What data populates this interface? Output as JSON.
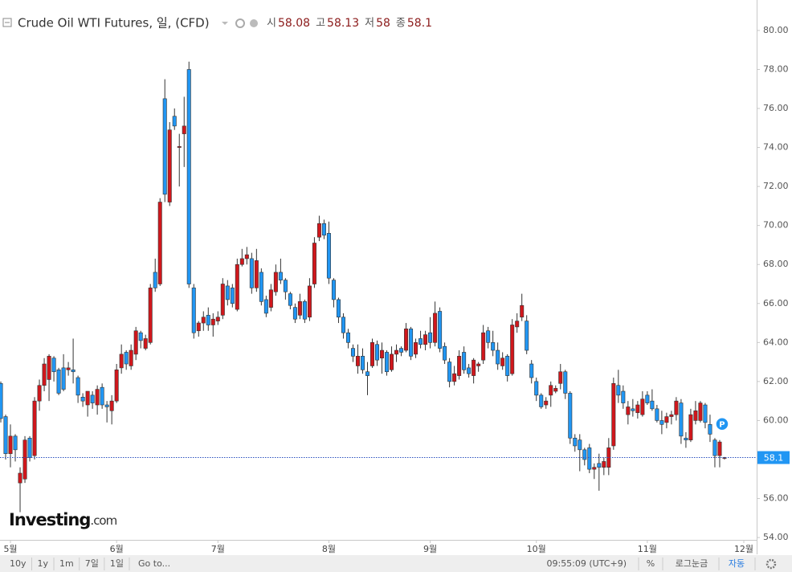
{
  "chart_data": {
    "type": "candlestick",
    "title": "Crude Oil WTI Futures, 일, (CFD)",
    "ohlc_labels": [
      "시",
      "고",
      "저",
      "종"
    ],
    "categories": [
      null,
      null,
      "5월",
      null,
      null,
      null,
      null,
      null,
      null,
      null,
      null,
      null,
      null,
      null,
      null,
      null,
      null,
      null,
      null,
      null,
      null,
      null,
      null,
      null,
      "6월",
      null,
      null,
      null,
      null,
      null,
      null,
      null,
      null,
      null,
      null,
      null,
      null,
      null,
      null,
      null,
      null,
      null,
      null,
      null,
      null,
      "7월",
      null,
      null,
      null,
      null,
      null,
      null,
      null,
      null,
      null,
      null,
      null,
      null,
      null,
      null,
      null,
      null,
      null,
      null,
      null,
      null,
      null,
      null,
      "8월",
      null,
      null,
      null,
      null,
      null,
      null,
      null,
      null,
      null,
      null,
      null,
      null,
      null,
      null,
      null,
      null,
      null,
      null,
      null,
      null,
      "9월",
      null,
      null,
      null,
      null,
      null,
      null,
      null,
      null,
      null,
      null,
      null,
      null,
      null,
      null,
      null,
      null,
      null,
      null,
      null,
      null,
      null,
      "10월",
      null,
      null,
      null,
      null,
      null,
      null,
      null,
      null,
      null,
      null,
      null,
      null,
      null,
      null,
      null,
      null,
      null,
      null,
      null,
      null,
      null,
      null,
      "11월",
      null,
      null,
      null,
      null,
      null,
      null,
      null,
      null,
      null,
      null,
      null,
      null,
      null,
      null,
      null,
      null,
      null,
      null,
      null,
      "12월"
    ],
    "ohlc": [
      [
        61.9,
        62.0,
        59.9,
        60.1
      ],
      [
        60.2,
        60.3,
        58.0,
        58.3
      ],
      [
        58.3,
        59.8,
        57.6,
        59.2
      ],
      [
        59.2,
        59.3,
        57.9,
        58.5
      ],
      [
        56.8,
        57.6,
        55.3,
        57.3
      ],
      [
        57.0,
        59.2,
        56.8,
        59.0
      ],
      [
        59.1,
        59.2,
        57.9,
        58.1
      ],
      [
        58.2,
        61.2,
        58.0,
        61.0
      ],
      [
        61.0,
        62.1,
        60.5,
        61.8
      ],
      [
        61.8,
        63.2,
        61.5,
        62.9
      ],
      [
        62.1,
        63.4,
        61.0,
        63.3
      ],
      [
        63.2,
        63.3,
        62.0,
        62.5
      ],
      [
        62.6,
        62.7,
        61.3,
        61.4
      ],
      [
        62.7,
        63.4,
        61.5,
        61.6
      ],
      [
        62.6,
        63.0,
        62.3,
        62.7
      ],
      [
        62.6,
        64.2,
        61.9,
        62.5
      ],
      [
        62.2,
        62.3,
        60.9,
        61.3
      ],
      [
        61.2,
        61.4,
        60.7,
        61.0
      ],
      [
        60.8,
        61.5,
        60.2,
        61.5
      ],
      [
        61.3,
        61.5,
        60.6,
        60.9
      ],
      [
        60.8,
        61.8,
        60.3,
        61.6
      ],
      [
        61.7,
        61.9,
        60.6,
        60.8
      ],
      [
        60.8,
        61.0,
        59.9,
        60.7
      ],
      [
        60.5,
        61.3,
        59.8,
        61.0
      ],
      [
        61.0,
        62.9,
        60.9,
        62.6
      ],
      [
        62.7,
        63.9,
        62.4,
        63.4
      ],
      [
        63.5,
        63.6,
        62.6,
        62.9
      ],
      [
        62.8,
        63.9,
        62.6,
        63.6
      ],
      [
        63.4,
        64.8,
        63.1,
        64.6
      ],
      [
        64.5,
        64.6,
        63.7,
        64.1
      ],
      [
        63.7,
        64.4,
        63.6,
        64.2
      ],
      [
        64.0,
        67.0,
        63.9,
        66.8
      ],
      [
        67.6,
        68.3,
        66.6,
        66.8
      ],
      [
        67.0,
        71.4,
        66.9,
        71.2
      ],
      [
        76.5,
        77.5,
        71.2,
        71.6
      ],
      [
        71.2,
        75.3,
        71.0,
        74.9
      ],
      [
        75.6,
        76.0,
        74.9,
        75.1
      ],
      [
        74.0,
        74.7,
        72.0,
        74.05
      ],
      [
        74.7,
        76.6,
        73.0,
        75.1
      ],
      [
        78.0,
        78.4,
        66.8,
        67.0
      ],
      [
        66.8,
        67.0,
        64.2,
        64.5
      ],
      [
        64.6,
        65.1,
        64.3,
        65.0
      ],
      [
        65.0,
        65.6,
        64.6,
        65.3
      ],
      [
        65.4,
        65.8,
        64.6,
        64.9
      ],
      [
        64.9,
        65.5,
        64.3,
        65.2
      ],
      [
        65.1,
        65.6,
        64.9,
        65.3
      ],
      [
        65.4,
        67.3,
        65.2,
        67.0
      ],
      [
        66.9,
        67.2,
        65.9,
        66.2
      ],
      [
        66.8,
        67.0,
        65.8,
        66.0
      ],
      [
        65.7,
        68.3,
        65.6,
        68.0
      ],
      [
        68.0,
        68.8,
        67.9,
        68.3
      ],
      [
        68.3,
        68.9,
        68.0,
        68.5
      ],
      [
        68.3,
        68.6,
        66.5,
        66.8
      ],
      [
        66.8,
        68.8,
        66.6,
        68.2
      ],
      [
        67.6,
        67.8,
        65.9,
        66.1
      ],
      [
        66.2,
        66.4,
        65.3,
        65.5
      ],
      [
        65.8,
        67.0,
        65.6,
        66.7
      ],
      [
        66.6,
        68.0,
        66.4,
        67.6
      ],
      [
        67.6,
        68.3,
        67.0,
        67.2
      ],
      [
        67.2,
        67.3,
        66.2,
        66.6
      ],
      [
        66.5,
        66.6,
        65.7,
        65.9
      ],
      [
        65.8,
        66.0,
        65.0,
        65.2
      ],
      [
        65.4,
        66.5,
        65.2,
        66.1
      ],
      [
        66.1,
        66.2,
        65.0,
        65.2
      ],
      [
        65.3,
        67.3,
        65.1,
        66.9
      ],
      [
        67.0,
        69.4,
        66.8,
        69.1
      ],
      [
        69.4,
        70.5,
        69.2,
        70.1
      ],
      [
        70.1,
        70.3,
        69.3,
        69.5
      ],
      [
        69.6,
        70.2,
        67.0,
        67.3
      ],
      [
        67.2,
        67.3,
        65.8,
        66.2
      ],
      [
        66.2,
        66.3,
        65.0,
        65.3
      ],
      [
        65.3,
        65.5,
        64.2,
        64.5
      ],
      [
        64.5,
        64.7,
        63.7,
        64.0
      ],
      [
        63.7,
        63.9,
        63.0,
        63.3
      ],
      [
        62.8,
        63.9,
        62.4,
        63.3
      ],
      [
        63.3,
        63.7,
        62.4,
        62.6
      ],
      [
        62.5,
        63.0,
        61.3,
        62.3
      ],
      [
        62.8,
        64.2,
        62.7,
        64.0
      ],
      [
        63.9,
        64.1,
        62.8,
        63.1
      ],
      [
        63.2,
        64.0,
        62.4,
        63.6
      ],
      [
        63.5,
        63.6,
        62.3,
        62.5
      ],
      [
        62.6,
        63.8,
        62.5,
        63.4
      ],
      [
        63.4,
        63.9,
        63.0,
        63.6
      ],
      [
        63.7,
        63.8,
        63.3,
        63.5
      ],
      [
        63.6,
        65.0,
        63.5,
        64.7
      ],
      [
        64.7,
        64.8,
        63.1,
        63.3
      ],
      [
        63.4,
        64.2,
        63.2,
        64.0
      ],
      [
        64.2,
        64.6,
        63.7,
        63.9
      ],
      [
        63.9,
        64.6,
        63.6,
        64.4
      ],
      [
        64.5,
        65.3,
        63.7,
        64.0
      ],
      [
        64.0,
        66.1,
        63.8,
        65.5
      ],
      [
        65.6,
        65.8,
        63.5,
        63.7
      ],
      [
        63.8,
        64.0,
        62.9,
        63.1
      ],
      [
        63.0,
        63.2,
        61.7,
        62.0
      ],
      [
        62.0,
        62.8,
        61.8,
        62.4
      ],
      [
        62.3,
        63.6,
        62.1,
        63.3
      ],
      [
        63.5,
        63.8,
        62.4,
        62.6
      ],
      [
        62.7,
        62.9,
        62.2,
        62.4
      ],
      [
        62.3,
        63.2,
        61.9,
        63.1
      ],
      [
        62.8,
        63.0,
        62.5,
        62.9
      ],
      [
        63.1,
        64.9,
        62.9,
        64.5
      ],
      [
        64.6,
        64.8,
        63.7,
        64.0
      ],
      [
        64.0,
        64.6,
        63.3,
        63.6
      ],
      [
        63.6,
        64.0,
        62.6,
        62.9
      ],
      [
        62.8,
        63.5,
        62.6,
        63.2
      ],
      [
        63.3,
        63.4,
        62.0,
        62.3
      ],
      [
        62.4,
        65.2,
        62.3,
        64.9
      ],
      [
        64.8,
        65.5,
        64.5,
        65.1
      ],
      [
        65.3,
        66.5,
        65.1,
        65.9
      ],
      [
        65.1,
        65.4,
        63.4,
        63.6
      ],
      [
        62.9,
        63.1,
        61.9,
        62.2
      ],
      [
        62.0,
        62.2,
        61.0,
        61.3
      ],
      [
        61.3,
        61.4,
        60.6,
        60.7
      ],
      [
        60.8,
        61.2,
        60.6,
        61.0
      ],
      [
        61.3,
        62.0,
        60.7,
        61.8
      ],
      [
        61.5,
        61.8,
        61.4,
        61.65
      ],
      [
        61.9,
        62.9,
        61.6,
        62.5
      ],
      [
        62.5,
        62.6,
        61.1,
        61.4
      ],
      [
        61.4,
        61.5,
        58.8,
        59.1
      ],
      [
        59.1,
        59.3,
        58.4,
        58.7
      ],
      [
        59.0,
        59.3,
        57.4,
        58.5
      ],
      [
        58.5,
        58.6,
        57.7,
        58.0
      ],
      [
        58.6,
        58.8,
        57.3,
        57.5
      ],
      [
        57.5,
        57.8,
        57.0,
        57.6
      ],
      [
        57.8,
        58.3,
        56.4,
        57.6
      ],
      [
        57.6,
        58.1,
        57.2,
        57.9
      ],
      [
        57.6,
        59.1,
        57.2,
        58.6
      ],
      [
        58.7,
        62.2,
        58.5,
        61.9
      ],
      [
        61.8,
        62.6,
        60.9,
        61.3
      ],
      [
        61.5,
        61.8,
        60.6,
        60.9
      ],
      [
        60.3,
        61.0,
        59.8,
        60.7
      ],
      [
        60.6,
        61.1,
        60.2,
        60.5
      ],
      [
        60.4,
        61.0,
        60.1,
        60.8
      ],
      [
        60.3,
        61.5,
        60.2,
        61.1
      ],
      [
        61.3,
        61.5,
        60.8,
        60.9
      ],
      [
        61.0,
        61.6,
        60.5,
        60.6
      ],
      [
        60.6,
        60.8,
        59.9,
        60.0
      ],
      [
        60.0,
        60.5,
        59.3,
        59.8
      ],
      [
        59.9,
        60.4,
        59.6,
        60.2
      ],
      [
        60.2,
        60.5,
        59.8,
        60.3
      ],
      [
        60.3,
        61.2,
        60.0,
        61.0
      ],
      [
        60.9,
        61.1,
        58.8,
        59.2
      ],
      [
        59.1,
        59.4,
        58.6,
        59.0
      ],
      [
        59.0,
        60.6,
        58.9,
        60.3
      ],
      [
        60.0,
        61.0,
        59.8,
        60.5
      ],
      [
        60.0,
        61.0,
        59.9,
        60.9
      ],
      [
        60.8,
        60.9,
        59.6,
        59.9
      ],
      [
        59.8,
        60.3,
        58.9,
        59.3
      ],
      [
        59.0,
        59.1,
        57.6,
        58.2
      ],
      [
        58.2,
        59.0,
        57.6,
        58.9
      ],
      [
        58.08,
        58.13,
        58.0,
        58.1
      ],
      null,
      null,
      null,
      null
    ],
    "up_color": "#d0171c",
    "down_color": "#2196f3",
    "ylim": [
      53.88,
      81.15
    ],
    "yticks": [
      {
        "value": 54,
        "label": "54.00"
      },
      {
        "value": 56,
        "label": "56.00"
      },
      {
        "value": 58,
        "label": "58.00"
      },
      {
        "value": 60,
        "label": "60.00"
      },
      {
        "value": 62,
        "label": "62.00"
      },
      {
        "value": 64,
        "label": "64.00"
      },
      {
        "value": 66,
        "label": "66.00"
      },
      {
        "value": 68,
        "label": "68.00"
      },
      {
        "value": 70,
        "label": "70.00"
      },
      {
        "value": 72,
        "label": "72.00"
      },
      {
        "value": 74,
        "label": "74.00"
      },
      {
        "value": 76,
        "label": "76.00"
      },
      {
        "value": 78,
        "label": "78.00"
      },
      {
        "value": 80,
        "label": "80.00"
      }
    ],
    "grid": false,
    "marker": "P"
  },
  "logo": {
    "main": "Investing",
    "suffix": ".com"
  },
  "toolbar": {
    "ranges": [
      "10y",
      "1y",
      "1m",
      "7일",
      "1일"
    ],
    "goto": "Go to...",
    "time": "09:55:09 (UTC+9)",
    "percent": "%",
    "log": "로그눈금",
    "auto": "자동"
  }
}
